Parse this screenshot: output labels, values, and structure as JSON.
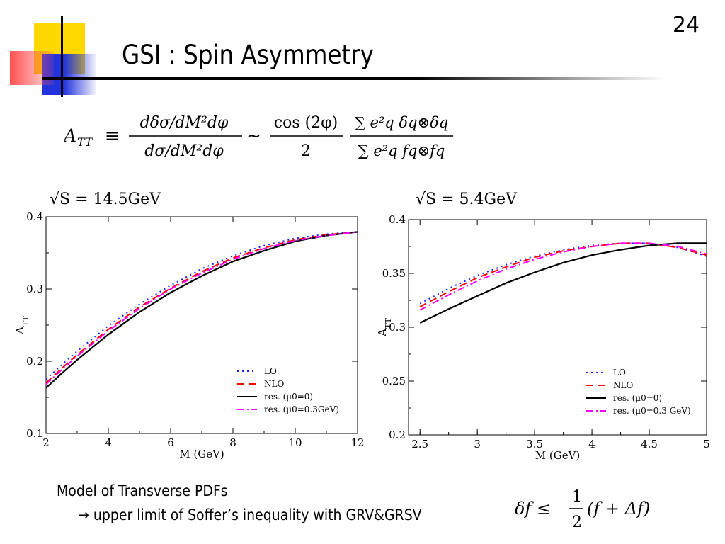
{
  "slide": {
    "number": "24",
    "title": "GSI : Spin Asymmetry"
  },
  "formula": {
    "lhs": "A",
    "lhs_sub": "TT",
    "equiv": "≡",
    "num1": "dδσ/dM²dφ",
    "den1": "dσ/dM²dφ",
    "sim": "∼",
    "num2": "cos (2φ)",
    "den2": "2",
    "num3": "∑ e²q δq⊗δq",
    "den3": "∑ e²q fq⊗fq"
  },
  "notes": {
    "line1": "Model of Transverse PDFs",
    "line2": "→ upper limit of Soffer’s inequality with GRV&GRSV"
  },
  "inequality": {
    "lhs": "δf ≤",
    "num": "1",
    "den": "2",
    "rhs": "(f + Δf)"
  },
  "colors": {
    "LO": "#2020ff",
    "NLO": "#ff0000",
    "res0": "#000000",
    "res03": "#ff00ff"
  },
  "chart_data": [
    {
      "type": "line",
      "title": "√S = 14.5GeV",
      "xlabel": "M (GeV)",
      "ylabel": "A_TT",
      "xlim": [
        2,
        12
      ],
      "ylim": [
        0.1,
        0.4
      ],
      "xticks": [
        2,
        4,
        6,
        8,
        10,
        12
      ],
      "yticks": [
        0.1,
        0.2,
        0.3,
        0.4
      ],
      "legend_position": "bottom-right",
      "x": [
        2,
        2.5,
        3,
        4,
        5,
        6,
        7,
        8,
        9,
        10,
        11,
        12
      ],
      "series": [
        {
          "name": "LO",
          "style": "dotted",
          "color": "#2020ff",
          "values": [
            0.175,
            0.195,
            0.214,
            0.249,
            0.279,
            0.305,
            0.328,
            0.346,
            0.36,
            0.37,
            0.376,
            0.379
          ]
        },
        {
          "name": "NLO",
          "style": "dashed",
          "color": "#ff0000",
          "values": [
            0.17,
            0.19,
            0.209,
            0.244,
            0.275,
            0.301,
            0.324,
            0.343,
            0.357,
            0.368,
            0.375,
            0.379
          ]
        },
        {
          "name": "res. (μ0=0)",
          "style": "solid",
          "color": "#000000",
          "values": [
            0.163,
            0.183,
            0.202,
            0.237,
            0.268,
            0.295,
            0.318,
            0.338,
            0.353,
            0.366,
            0.374,
            0.379
          ]
        },
        {
          "name": "res. (μ0=0.3GeV)",
          "style": "dashdot",
          "color": "#ff00ff",
          "values": [
            0.168,
            0.188,
            0.207,
            0.242,
            0.273,
            0.3,
            0.322,
            0.341,
            0.356,
            0.367,
            0.374,
            0.379
          ]
        }
      ]
    },
    {
      "type": "line",
      "title": "√S = 5.4GeV",
      "xlabel": "M (GeV)",
      "ylabel": "A_TT",
      "xlim": [
        2.4,
        5
      ],
      "ylim": [
        0.2,
        0.4
      ],
      "xticks": [
        2.5,
        3,
        3.5,
        4,
        4.5,
        5
      ],
      "yticks": [
        0.2,
        0.25,
        0.3,
        0.35,
        0.4
      ],
      "legend_position": "bottom-right",
      "x": [
        2.5,
        2.75,
        3,
        3.25,
        3.5,
        3.75,
        4,
        4.25,
        4.5,
        4.75,
        5
      ],
      "series": [
        {
          "name": "LO",
          "style": "dotted",
          "color": "#2020ff",
          "values": [
            0.322,
            0.336,
            0.348,
            0.358,
            0.366,
            0.372,
            0.376,
            0.378,
            0.378,
            0.374,
            0.366
          ]
        },
        {
          "name": "NLO",
          "style": "dashed",
          "color": "#ff0000",
          "values": [
            0.319,
            0.333,
            0.346,
            0.356,
            0.365,
            0.371,
            0.375,
            0.378,
            0.378,
            0.374,
            0.367
          ]
        },
        {
          "name": "res. (μ0=0)",
          "style": "solid",
          "color": "#000000",
          "values": [
            0.304,
            0.317,
            0.329,
            0.341,
            0.351,
            0.36,
            0.367,
            0.372,
            0.376,
            0.378,
            0.378
          ]
        },
        {
          "name": "res. (μ0=0.3 GeV)",
          "style": "dashdot",
          "color": "#ff00ff",
          "values": [
            0.316,
            0.33,
            0.343,
            0.354,
            0.363,
            0.37,
            0.375,
            0.378,
            0.378,
            0.375,
            0.368
          ]
        }
      ]
    }
  ]
}
